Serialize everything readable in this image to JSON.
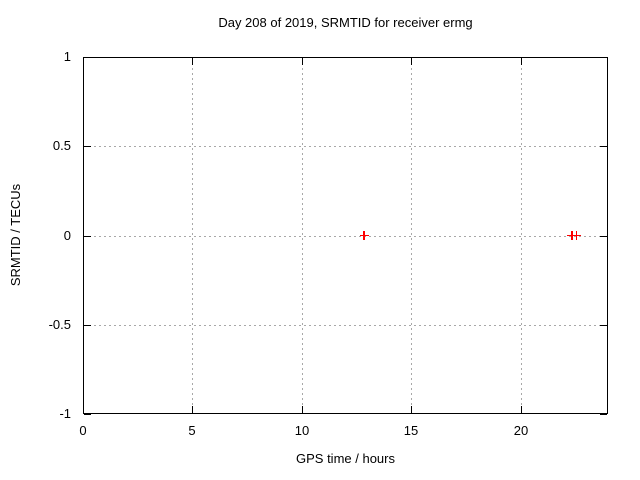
{
  "chart_data": {
    "type": "scatter",
    "title": "Day 208 of 2019, SRMTID for receiver ermg",
    "xlabel": "GPS time / hours",
    "ylabel": "SRMTID / TECUs",
    "xlim": [
      0,
      24
    ],
    "ylim": [
      -1,
      1
    ],
    "xticks": [
      {
        "value": 0,
        "label": "0"
      },
      {
        "value": 5,
        "label": "5"
      },
      {
        "value": 10,
        "label": "10"
      },
      {
        "value": 15,
        "label": "15"
      },
      {
        "value": 20,
        "label": "20"
      }
    ],
    "yticks": [
      {
        "value": -1,
        "label": "-1"
      },
      {
        "value": -0.5,
        "label": "-0.5"
      },
      {
        "value": 0,
        "label": "0"
      },
      {
        "value": 0.5,
        "label": "0.5"
      },
      {
        "value": 1,
        "label": "1"
      }
    ],
    "grid": "dashed",
    "grid_color": "#a8a8a8",
    "border_color": "#000000",
    "background_color": "#ffffff",
    "legend": "none",
    "series": [
      {
        "name": "SRMTID",
        "marker": "plus",
        "color": "#ff0000",
        "points": [
          {
            "x": 12.85,
            "y": 0.0
          },
          {
            "x": 22.35,
            "y": 0.0
          },
          {
            "x": 22.55,
            "y": 0.0
          }
        ]
      }
    ]
  }
}
